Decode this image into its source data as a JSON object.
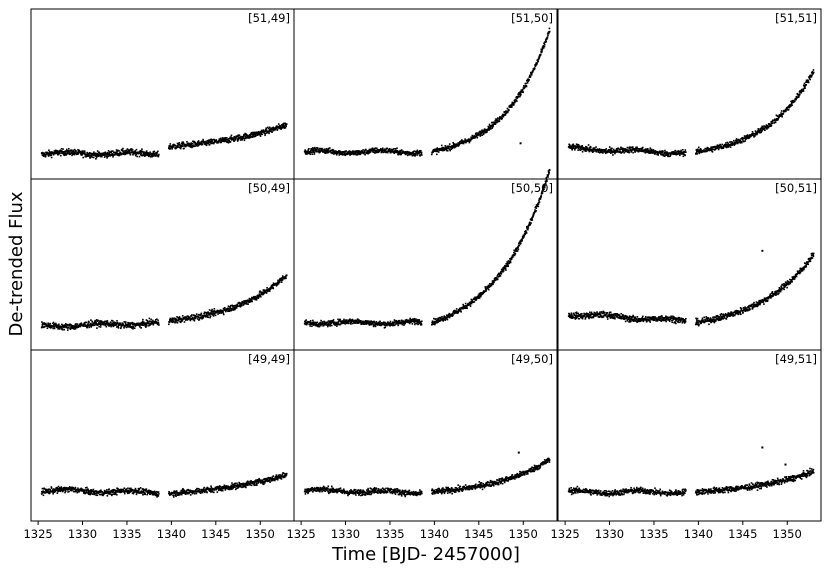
{
  "figure": {
    "ylabel": "De-trended Flux",
    "xlabel": "Time [BJD- 2457000]"
  },
  "chart_data": {
    "type": "scatter",
    "xlabel": "Time [BJD- 2457000]",
    "ylabel": "De-trended Flux",
    "xlim": [
      1324.2,
      1353.8
    ],
    "ylim": [
      0,
      1
    ],
    "x_ticks": [
      1325,
      1330,
      1335,
      1340,
      1345,
      1350
    ],
    "y_ticks_shown": false,
    "grid": false,
    "point_color": "#000000",
    "data_gap": [
      1338.6,
      1339.7
    ],
    "panels": [
      {
        "label": "[51,49]",
        "row": 0,
        "col": 0,
        "pre_level": 0.15,
        "pre_slope": 0.0,
        "post_level": 0.19,
        "ramp_amp": 0.13,
        "ramp_k": 0.12,
        "noise": 0.018,
        "outliers": []
      },
      {
        "label": "[51,50]",
        "row": 0,
        "col": 1,
        "pre_level": 0.16,
        "pre_slope": 0.0,
        "post_level": 0.16,
        "ramp_amp": 0.72,
        "ramp_k": 0.2,
        "noise": 0.016,
        "outliers": [
          [
            1349.7,
            0.21
          ]
        ]
      },
      {
        "label": "[51,51]",
        "row": 0,
        "col": 2,
        "pre_level": 0.18,
        "pre_slope": -0.002,
        "post_level": 0.16,
        "ramp_amp": 0.48,
        "ramp_k": 0.19,
        "noise": 0.017,
        "outliers": []
      },
      {
        "label": "[50,49]",
        "row": 1,
        "col": 0,
        "pre_level": 0.14,
        "pre_slope": 0.0012,
        "post_level": 0.17,
        "ramp_amp": 0.27,
        "ramp_k": 0.16,
        "noise": 0.018,
        "outliers": []
      },
      {
        "label": "[50,50]",
        "row": 1,
        "col": 1,
        "pre_level": 0.16,
        "pre_slope": 0.0,
        "post_level": 0.16,
        "ramp_amp": 0.9,
        "ramp_k": 0.17,
        "noise": 0.016,
        "outliers": []
      },
      {
        "label": "[50,51]",
        "row": 1,
        "col": 2,
        "pre_level": 0.21,
        "pre_slope": -0.003,
        "post_level": 0.16,
        "ramp_amp": 0.4,
        "ramp_k": 0.16,
        "noise": 0.018,
        "outliers": [
          [
            1347.2,
            0.58
          ]
        ]
      },
      {
        "label": "[49,49]",
        "row": 2,
        "col": 0,
        "pre_level": 0.18,
        "pre_slope": -0.001,
        "post_level": 0.16,
        "ramp_amp": 0.11,
        "ramp_k": 0.1,
        "noise": 0.017,
        "outliers": []
      },
      {
        "label": "[49,50]",
        "row": 2,
        "col": 1,
        "pre_level": 0.18,
        "pre_slope": -0.001,
        "post_level": 0.17,
        "ramp_amp": 0.19,
        "ramp_k": 0.16,
        "noise": 0.017,
        "outliers": [
          [
            1349.5,
            0.4
          ]
        ]
      },
      {
        "label": "[49,51]",
        "row": 2,
        "col": 2,
        "pre_level": 0.17,
        "pre_slope": 0.0,
        "post_level": 0.17,
        "ramp_amp": 0.12,
        "ramp_k": 0.14,
        "noise": 0.017,
        "outliers": [
          [
            1347.2,
            0.43
          ],
          [
            1349.8,
            0.33
          ]
        ]
      }
    ]
  }
}
